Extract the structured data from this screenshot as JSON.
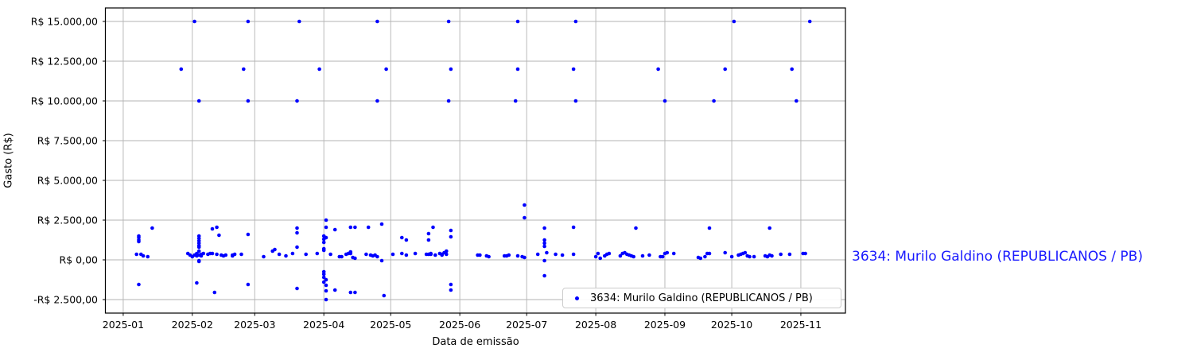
{
  "figure": {
    "side_annotation": "3634: Murilo Galdino (REPUBLICANOS / PB)",
    "colors": {
      "marker": "#0000ff",
      "annotation": "#1a1aff",
      "grid": "#b3b3b3",
      "spine": "#000000",
      "legend_border": "#cccccc",
      "background": "#ffffff"
    }
  },
  "chart_data": {
    "type": "scatter",
    "title": "",
    "xlabel": "Data de emissão",
    "ylabel": "Gasto (R$)",
    "grid": true,
    "legend_position": "lower right",
    "legend": {
      "entries": [
        {
          "label": "3634: Murilo Galdino (REPUBLICANOS / PB)",
          "marker_color": "#0000ff"
        }
      ]
    },
    "xlim": [
      "2024-12-24",
      "2025-11-21"
    ],
    "ylim": [
      -3350,
      15850
    ],
    "x_ticks": [
      {
        "date": "2025-01-01",
        "label": "2025-01"
      },
      {
        "date": "2025-02-01",
        "label": "2025-02"
      },
      {
        "date": "2025-03-01",
        "label": "2025-03"
      },
      {
        "date": "2025-04-01",
        "label": "2025-04"
      },
      {
        "date": "2025-05-01",
        "label": "2025-05"
      },
      {
        "date": "2025-06-01",
        "label": "2025-06"
      },
      {
        "date": "2025-07-01",
        "label": "2025-07"
      },
      {
        "date": "2025-08-01",
        "label": "2025-08"
      },
      {
        "date": "2025-09-01",
        "label": "2025-09"
      },
      {
        "date": "2025-10-01",
        "label": "2025-10"
      },
      {
        "date": "2025-11-01",
        "label": "2025-11"
      }
    ],
    "y_ticks": [
      {
        "value": 15000,
        "label": "R$ 15.000,00"
      },
      {
        "value": 12500,
        "label": "R$ 12.500,00"
      },
      {
        "value": 10000,
        "label": "R$ 10.000,00"
      },
      {
        "value": 7500,
        "label": "R$ 7.500,00"
      },
      {
        "value": 5000,
        "label": "R$ 5.000,00"
      },
      {
        "value": 2500,
        "label": "R$ 2.500,00"
      },
      {
        "value": 0,
        "label": "R$ 0,00"
      },
      {
        "value": -2500,
        "label": "-R$ 2.500,00"
      }
    ],
    "series": [
      {
        "name": "3634: Murilo Galdino (REPUBLICANOS / PB)",
        "color": "#0000ff",
        "points": [
          [
            "2025-02-02",
            15000
          ],
          [
            "2025-02-26",
            15000
          ],
          [
            "2025-03-21",
            15000
          ],
          [
            "2025-04-25",
            15000
          ],
          [
            "2025-05-27",
            15000
          ],
          [
            "2025-06-27",
            15000
          ],
          [
            "2025-07-23",
            15000
          ],
          [
            "2025-10-02",
            15000
          ],
          [
            "2025-11-05",
            15000
          ],
          [
            "2025-01-27",
            12000
          ],
          [
            "2025-02-24",
            12000
          ],
          [
            "2025-03-30",
            12000
          ],
          [
            "2025-04-29",
            12000
          ],
          [
            "2025-05-28",
            12000
          ],
          [
            "2025-06-27",
            12000
          ],
          [
            "2025-07-22",
            12000
          ],
          [
            "2025-08-29",
            12000
          ],
          [
            "2025-09-28",
            12000
          ],
          [
            "2025-10-28",
            12000
          ],
          [
            "2025-02-04",
            10000
          ],
          [
            "2025-02-26",
            10000
          ],
          [
            "2025-03-20",
            10000
          ],
          [
            "2025-04-25",
            10000
          ],
          [
            "2025-05-27",
            10000
          ],
          [
            "2025-06-26",
            10000
          ],
          [
            "2025-07-23",
            10000
          ],
          [
            "2025-09-01",
            10000
          ],
          [
            "2025-09-23",
            10000
          ],
          [
            "2025-10-30",
            10000
          ],
          [
            "2025-06-30",
            3450
          ],
          [
            "2025-06-30",
            2650
          ],
          [
            "2025-04-02",
            2500
          ],
          [
            "2025-04-27",
            2250
          ],
          [
            "2025-01-07",
            350
          ],
          [
            "2025-01-08",
            1500
          ],
          [
            "2025-01-08",
            1400
          ],
          [
            "2025-01-08",
            1250
          ],
          [
            "2025-01-08",
            1150
          ],
          [
            "2025-01-09",
            350
          ],
          [
            "2025-01-10",
            250
          ],
          [
            "2025-01-12",
            200
          ],
          [
            "2025-01-14",
            2000
          ],
          [
            "2025-01-08",
            -1550
          ],
          [
            "2025-01-30",
            400
          ],
          [
            "2025-01-31",
            300
          ],
          [
            "2025-02-01",
            200
          ],
          [
            "2025-02-02",
            300
          ],
          [
            "2025-02-03",
            400
          ],
          [
            "2025-02-03",
            250
          ],
          [
            "2025-02-04",
            300
          ],
          [
            "2025-02-05",
            350
          ],
          [
            "2025-02-05",
            250
          ],
          [
            "2025-02-06",
            400
          ],
          [
            "2025-02-04",
            1500
          ],
          [
            "2025-02-04",
            1350
          ],
          [
            "2025-02-04",
            1200
          ],
          [
            "2025-02-04",
            1050
          ],
          [
            "2025-02-04",
            900
          ],
          [
            "2025-02-04",
            800
          ],
          [
            "2025-02-04",
            550
          ],
          [
            "2025-02-04",
            -50
          ],
          [
            "2025-02-04",
            -100
          ],
          [
            "2025-02-03",
            -1450
          ],
          [
            "2025-02-08",
            350
          ],
          [
            "2025-02-09",
            400
          ],
          [
            "2025-02-10",
            400
          ],
          [
            "2025-02-10",
            1950
          ],
          [
            "2025-02-12",
            2050
          ],
          [
            "2025-02-12",
            350
          ],
          [
            "2025-02-13",
            1550
          ],
          [
            "2025-02-11",
            -2050
          ],
          [
            "2025-02-14",
            300
          ],
          [
            "2025-02-15",
            250
          ],
          [
            "2025-02-16",
            300
          ],
          [
            "2025-02-19",
            250
          ],
          [
            "2025-02-19",
            300
          ],
          [
            "2025-02-20",
            350
          ],
          [
            "2025-02-23",
            350
          ],
          [
            "2025-02-26",
            1600
          ],
          [
            "2025-02-26",
            -1550
          ],
          [
            "2025-03-05",
            200
          ],
          [
            "2025-03-09",
            550
          ],
          [
            "2025-03-10",
            650
          ],
          [
            "2025-03-12",
            350
          ],
          [
            "2025-03-15",
            250
          ],
          [
            "2025-03-18",
            400
          ],
          [
            "2025-03-20",
            2000
          ],
          [
            "2025-03-20",
            1700
          ],
          [
            "2025-03-20",
            800
          ],
          [
            "2025-03-20",
            -1800
          ],
          [
            "2025-03-24",
            350
          ],
          [
            "2025-03-29",
            400
          ],
          [
            "2025-04-02",
            2050
          ],
          [
            "2025-04-01",
            1500
          ],
          [
            "2025-04-02",
            1400
          ],
          [
            "2025-04-01",
            1300
          ],
          [
            "2025-04-01",
            1100
          ],
          [
            "2025-04-01",
            700
          ],
          [
            "2025-04-01",
            600
          ],
          [
            "2025-04-01",
            -750
          ],
          [
            "2025-04-01",
            -900
          ],
          [
            "2025-04-01",
            -1100
          ],
          [
            "2025-04-02",
            -1250
          ],
          [
            "2025-04-01",
            -1400
          ],
          [
            "2025-04-02",
            -1600
          ],
          [
            "2025-04-02",
            -1950
          ],
          [
            "2025-04-02",
            -2500
          ],
          [
            "2025-04-04",
            350
          ],
          [
            "2025-04-06",
            1900
          ],
          [
            "2025-04-06",
            -1900
          ],
          [
            "2025-04-08",
            200
          ],
          [
            "2025-04-09",
            200
          ],
          [
            "2025-04-11",
            350
          ],
          [
            "2025-04-12",
            400
          ],
          [
            "2025-04-13",
            500
          ],
          [
            "2025-04-13",
            400
          ],
          [
            "2025-04-14",
            150
          ],
          [
            "2025-04-15",
            100
          ],
          [
            "2025-04-13",
            2050
          ],
          [
            "2025-04-15",
            2050
          ],
          [
            "2025-04-13",
            -2050
          ],
          [
            "2025-04-15",
            -2050
          ],
          [
            "2025-04-20",
            350
          ],
          [
            "2025-04-21",
            2050
          ],
          [
            "2025-04-22",
            300
          ],
          [
            "2025-04-23",
            250
          ],
          [
            "2025-04-24",
            300
          ],
          [
            "2025-04-25",
            200
          ],
          [
            "2025-04-27",
            -50
          ],
          [
            "2025-04-28",
            -2250
          ],
          [
            "2025-05-02",
            350
          ],
          [
            "2025-05-06",
            1400
          ],
          [
            "2025-05-06",
            400
          ],
          [
            "2025-05-08",
            1250
          ],
          [
            "2025-05-08",
            300
          ],
          [
            "2025-05-12",
            400
          ],
          [
            "2025-05-17",
            350
          ],
          [
            "2025-05-18",
            350
          ],
          [
            "2025-05-18",
            1650
          ],
          [
            "2025-05-18",
            1250
          ],
          [
            "2025-05-19",
            400
          ],
          [
            "2025-05-19",
            350
          ],
          [
            "2025-05-20",
            2050
          ],
          [
            "2025-05-21",
            300
          ],
          [
            "2025-05-23",
            400
          ],
          [
            "2025-05-24",
            300
          ],
          [
            "2025-05-24",
            350
          ],
          [
            "2025-05-25",
            450
          ],
          [
            "2025-05-26",
            350
          ],
          [
            "2025-05-26",
            550
          ],
          [
            "2025-05-28",
            1850
          ],
          [
            "2025-05-28",
            1450
          ],
          [
            "2025-05-28",
            -1550
          ],
          [
            "2025-05-28",
            -1900
          ],
          [
            "2025-06-09",
            300
          ],
          [
            "2025-06-10",
            300
          ],
          [
            "2025-06-13",
            250
          ],
          [
            "2025-06-14",
            200
          ],
          [
            "2025-06-21",
            250
          ],
          [
            "2025-06-22",
            250
          ],
          [
            "2025-06-23",
            300
          ],
          [
            "2025-06-27",
            250
          ],
          [
            "2025-06-29",
            200
          ],
          [
            "2025-06-30",
            150
          ],
          [
            "2025-07-06",
            350
          ],
          [
            "2025-07-09",
            2000
          ],
          [
            "2025-07-09",
            1250
          ],
          [
            "2025-07-09",
            1050
          ],
          [
            "2025-07-09",
            850
          ],
          [
            "2025-07-10",
            450
          ],
          [
            "2025-07-09",
            -50
          ],
          [
            "2025-07-09",
            -1000
          ],
          [
            "2025-07-14",
            350
          ],
          [
            "2025-07-17",
            300
          ],
          [
            "2025-07-22",
            2050
          ],
          [
            "2025-07-22",
            350
          ],
          [
            "2025-08-01",
            200
          ],
          [
            "2025-08-02",
            400
          ],
          [
            "2025-08-03",
            100
          ],
          [
            "2025-08-05",
            250
          ],
          [
            "2025-08-06",
            350
          ],
          [
            "2025-08-07",
            400
          ],
          [
            "2025-08-12",
            250
          ],
          [
            "2025-08-13",
            400
          ],
          [
            "2025-08-14",
            450
          ],
          [
            "2025-08-15",
            350
          ],
          [
            "2025-08-16",
            300
          ],
          [
            "2025-08-17",
            250
          ],
          [
            "2025-08-18",
            200
          ],
          [
            "2025-08-19",
            2000
          ],
          [
            "2025-08-22",
            250
          ],
          [
            "2025-08-25",
            300
          ],
          [
            "2025-08-30",
            200
          ],
          [
            "2025-08-31",
            200
          ],
          [
            "2025-09-01",
            400
          ],
          [
            "2025-09-02",
            450
          ],
          [
            "2025-09-05",
            400
          ],
          [
            "2025-09-16",
            150
          ],
          [
            "2025-09-17",
            100
          ],
          [
            "2025-09-19",
            200
          ],
          [
            "2025-09-20",
            400
          ],
          [
            "2025-09-21",
            400
          ],
          [
            "2025-09-21",
            2000
          ],
          [
            "2025-09-28",
            450
          ],
          [
            "2025-10-01",
            200
          ],
          [
            "2025-10-04",
            300
          ],
          [
            "2025-10-05",
            350
          ],
          [
            "2025-10-06",
            400
          ],
          [
            "2025-10-07",
            450
          ],
          [
            "2025-10-08",
            250
          ],
          [
            "2025-10-09",
            200
          ],
          [
            "2025-10-11",
            200
          ],
          [
            "2025-10-16",
            250
          ],
          [
            "2025-10-17",
            200
          ],
          [
            "2025-10-18",
            300
          ],
          [
            "2025-10-18",
            2000
          ],
          [
            "2025-10-19",
            250
          ],
          [
            "2025-10-23",
            350
          ],
          [
            "2025-10-27",
            350
          ],
          [
            "2025-11-02",
            400
          ],
          [
            "2025-11-03",
            400
          ]
        ]
      }
    ]
  }
}
